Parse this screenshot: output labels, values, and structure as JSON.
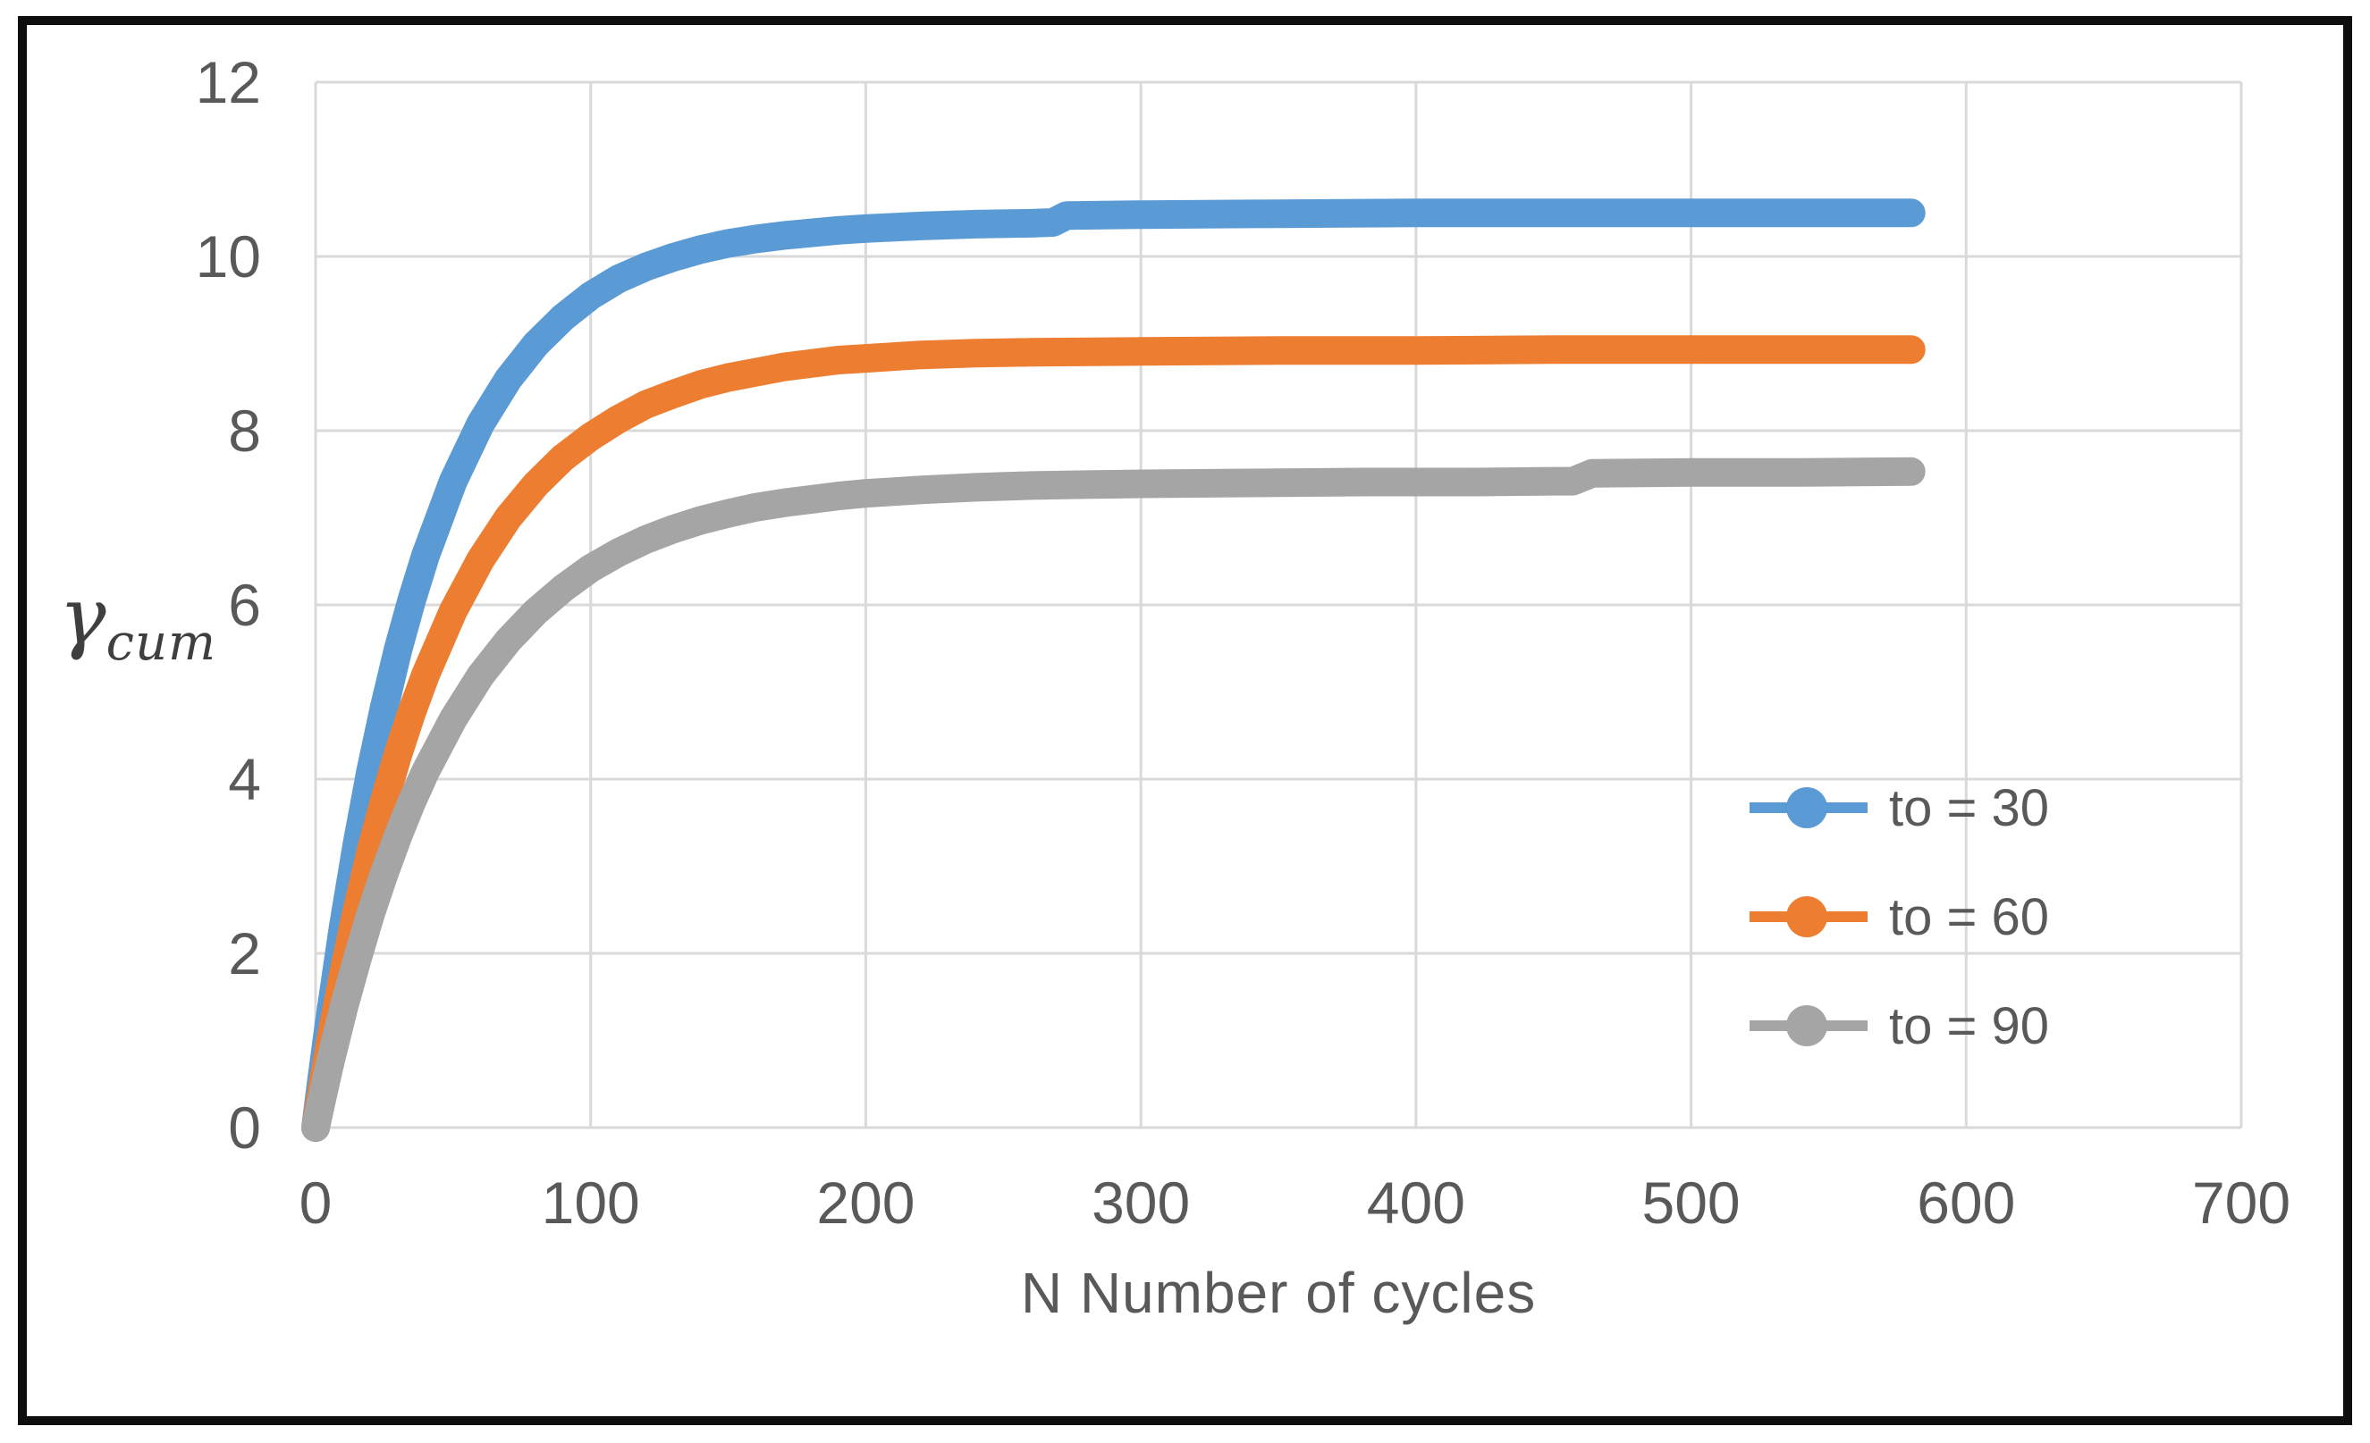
{
  "figure": {
    "background": "#ffffff",
    "frame_color": "#0e0e0e",
    "gridline_color": "#d9d9d9",
    "axis_text_color": "#595959"
  },
  "chart_data": {
    "type": "line",
    "title": "",
    "xlabel": "N Number of cycles",
    "ylabel": "γcum",
    "ylabel_symbol": "γ",
    "ylabel_subscript": "cum",
    "xlim": [
      0,
      700
    ],
    "ylim": [
      0,
      12
    ],
    "x_ticks": [
      0,
      100,
      200,
      300,
      400,
      500,
      600,
      700
    ],
    "y_ticks": [
      0,
      2,
      4,
      6,
      8,
      10,
      12
    ],
    "grid": true,
    "legend_position": "inside-right",
    "series": [
      {
        "name": "to = 30",
        "color": "#5B9BD5",
        "points": [
          [
            0,
            0
          ],
          [
            2,
            0.51
          ],
          [
            5,
            1.22
          ],
          [
            10,
            2.3
          ],
          [
            15,
            3.25
          ],
          [
            20,
            4.09
          ],
          [
            25,
            4.83
          ],
          [
            30,
            5.49
          ],
          [
            35,
            6.06
          ],
          [
            40,
            6.57
          ],
          [
            50,
            7.42
          ],
          [
            60,
            8.08
          ],
          [
            70,
            8.59
          ],
          [
            80,
            8.99
          ],
          [
            90,
            9.3
          ],
          [
            100,
            9.55
          ],
          [
            110,
            9.74
          ],
          [
            120,
            9.88
          ],
          [
            130,
            9.99
          ],
          [
            140,
            10.08
          ],
          [
            150,
            10.15
          ],
          [
            160,
            10.2
          ],
          [
            170,
            10.24
          ],
          [
            180,
            10.27
          ],
          [
            190,
            10.3
          ],
          [
            200,
            10.32
          ],
          [
            220,
            10.35
          ],
          [
            240,
            10.37
          ],
          [
            260,
            10.38
          ],
          [
            268,
            10.39
          ],
          [
            273,
            10.47
          ],
          [
            300,
            10.48
          ],
          [
            350,
            10.49
          ],
          [
            400,
            10.5
          ],
          [
            450,
            10.5
          ],
          [
            500,
            10.5
          ],
          [
            540,
            10.5
          ],
          [
            580,
            10.5
          ]
        ]
      },
      {
        "name": "to = 60",
        "color": "#ED7D31",
        "points": [
          [
            0,
            0
          ],
          [
            2,
            0.38
          ],
          [
            5,
            0.92
          ],
          [
            10,
            1.75
          ],
          [
            15,
            2.49
          ],
          [
            20,
            3.16
          ],
          [
            25,
            3.75
          ],
          [
            30,
            4.29
          ],
          [
            35,
            4.77
          ],
          [
            40,
            5.2
          ],
          [
            50,
            5.93
          ],
          [
            60,
            6.52
          ],
          [
            70,
            7.0
          ],
          [
            80,
            7.38
          ],
          [
            90,
            7.69
          ],
          [
            100,
            7.93
          ],
          [
            110,
            8.13
          ],
          [
            120,
            8.3
          ],
          [
            130,
            8.42
          ],
          [
            140,
            8.53
          ],
          [
            150,
            8.61
          ],
          [
            160,
            8.67
          ],
          [
            170,
            8.73
          ],
          [
            180,
            8.77
          ],
          [
            190,
            8.81
          ],
          [
            200,
            8.83
          ],
          [
            220,
            8.87
          ],
          [
            240,
            8.89
          ],
          [
            260,
            8.9
          ],
          [
            300,
            8.91
          ],
          [
            350,
            8.92
          ],
          [
            400,
            8.92
          ],
          [
            450,
            8.93
          ],
          [
            500,
            8.93
          ],
          [
            540,
            8.93
          ],
          [
            580,
            8.93
          ]
        ]
      },
      {
        "name": "to = 90",
        "color": "#A5A5A5",
        "points": [
          [
            0,
            0
          ],
          [
            2,
            0.29
          ],
          [
            5,
            0.71
          ],
          [
            10,
            1.35
          ],
          [
            15,
            1.92
          ],
          [
            20,
            2.45
          ],
          [
            25,
            2.92
          ],
          [
            30,
            3.35
          ],
          [
            35,
            3.74
          ],
          [
            40,
            4.09
          ],
          [
            50,
            4.69
          ],
          [
            60,
            5.19
          ],
          [
            70,
            5.59
          ],
          [
            80,
            5.92
          ],
          [
            90,
            6.19
          ],
          [
            100,
            6.42
          ],
          [
            110,
            6.6
          ],
          [
            120,
            6.75
          ],
          [
            130,
            6.87
          ],
          [
            140,
            6.97
          ],
          [
            150,
            7.05
          ],
          [
            160,
            7.12
          ],
          [
            170,
            7.17
          ],
          [
            180,
            7.21
          ],
          [
            190,
            7.25
          ],
          [
            200,
            7.28
          ],
          [
            220,
            7.32
          ],
          [
            240,
            7.35
          ],
          [
            260,
            7.37
          ],
          [
            280,
            7.38
          ],
          [
            300,
            7.39
          ],
          [
            340,
            7.4
          ],
          [
            380,
            7.41
          ],
          [
            420,
            7.41
          ],
          [
            450,
            7.42
          ],
          [
            457,
            7.42
          ],
          [
            464,
            7.51
          ],
          [
            500,
            7.52
          ],
          [
            540,
            7.52
          ],
          [
            580,
            7.53
          ]
        ]
      }
    ]
  }
}
